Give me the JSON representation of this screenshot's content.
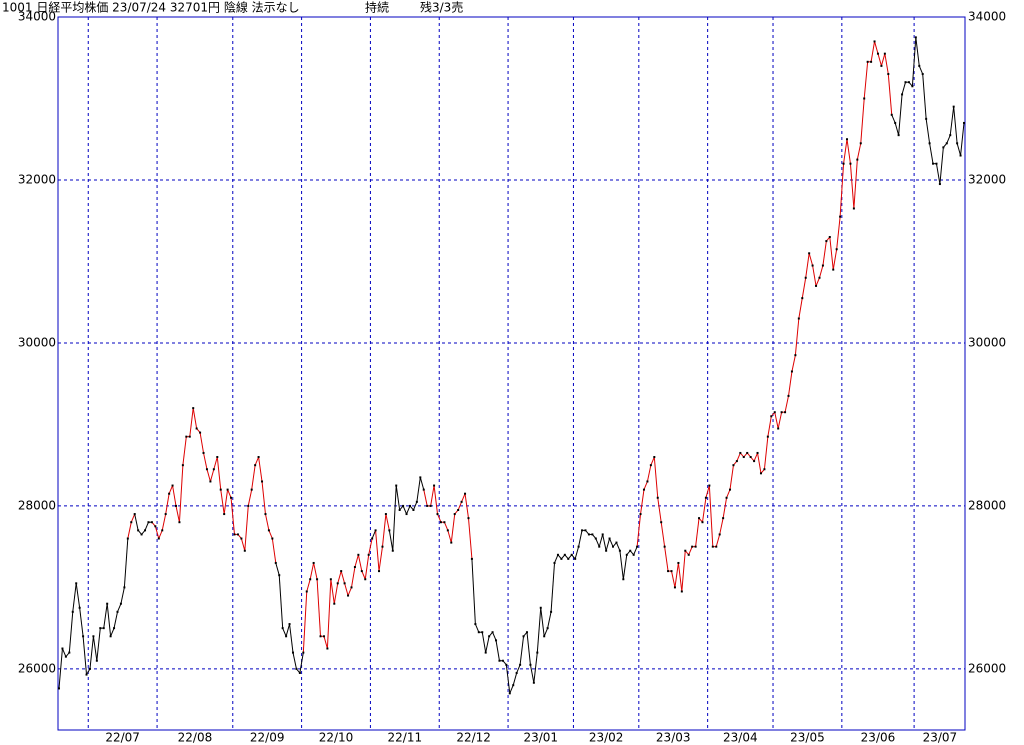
{
  "chart_data": {
    "type": "line",
    "header": [
      "1001 日経平均株価 23/07/24 32701円 陰線 法示なし",
      "持続",
      "残3/3売"
    ],
    "categories": [
      null,
      "22/07",
      "22/08",
      "22/09",
      "22/10",
      "22/11",
      "22/12",
      "23/01",
      "23/02",
      "23/03",
      "23/04",
      "23/05",
      "23/06",
      "23/07"
    ],
    "ylim": [
      25250,
      34000
    ],
    "yticks": [
      26000,
      28000,
      30000,
      32000,
      34000
    ],
    "grid": true,
    "grid_color": "#0000c0",
    "point_color": "#000000",
    "series": [
      {
        "values": [
          [
            25760,
            26250,
            26150,
            26200,
            26700,
            27050,
            26750,
            26400,
            25930
          ],
          [
            26000,
            26400,
            26100,
            26500,
            26500,
            26800,
            26400,
            26500,
            26700,
            26800,
            27000,
            27600,
            27800,
            27900,
            27700,
            27650,
            27700,
            27800,
            27800,
            27750
          ],
          [
            27600,
            27700,
            27900,
            28150,
            28250,
            28000,
            27800,
            28500,
            28850,
            28850,
            29200,
            28950,
            28900,
            28650,
            28450,
            28300,
            28450,
            28600,
            28200,
            27900,
            28200,
            28100
          ],
          [
            27650,
            27650,
            27600,
            27450,
            28000,
            28200,
            28500,
            28600,
            28300,
            27900,
            27700,
            27600,
            27300,
            27150,
            26500,
            26400,
            26550,
            26200,
            26000,
            25950
          ],
          [
            26200,
            26950,
            27100,
            27300,
            27100,
            26400,
            26400,
            26250,
            27100,
            26800,
            27050,
            27200,
            27050,
            26900,
            27000,
            27250,
            27400,
            27200,
            27100,
            27400
          ],
          [
            27600,
            27700,
            27200,
            27500,
            27900,
            27700,
            27450,
            28250,
            27950,
            28000,
            27900,
            28000,
            27950,
            28050,
            28350,
            28200,
            28000,
            28000,
            28250,
            27900
          ],
          [
            27800,
            27800,
            27700,
            27550,
            27900,
            27950,
            28050,
            28150,
            27850,
            27350,
            26550,
            26450,
            26450,
            26200,
            26400,
            26450,
            26350,
            26100,
            26100,
            26050
          ],
          [
            25700,
            25800,
            25950,
            26050,
            26400,
            26450,
            26050,
            25830,
            26200,
            26750,
            26400,
            26500,
            26700,
            27300,
            27400,
            27350,
            27400,
            27350,
            27400
          ],
          [
            27350,
            27500,
            27700,
            27700,
            27650,
            27650,
            27600,
            27500,
            27650,
            27450,
            27600,
            27500,
            27550,
            27450,
            27100,
            27400,
            27450,
            27400,
            27500
          ],
          [
            27900,
            28200,
            28300,
            28500,
            28600,
            28100,
            27800,
            27500,
            27200,
            27200,
            27000,
            27300,
            26950,
            27450,
            27400,
            27500,
            27500,
            27850,
            27800,
            28100
          ],
          [
            28250,
            27500,
            27500,
            27650,
            27850,
            28100,
            28200,
            28500,
            28550,
            28650,
            28600,
            28650,
            28600,
            28550,
            28650,
            28400,
            28450,
            28850,
            29100
          ],
          [
            29150,
            28950,
            29150,
            29150,
            29350,
            29650,
            29850,
            30300,
            30550,
            30800,
            31100,
            30950,
            30700,
            30800,
            30950,
            31250,
            31300,
            30900,
            31150,
            31550
          ],
          [
            32200,
            32500,
            32200,
            31650,
            32250,
            32450,
            33000,
            33450,
            33450,
            33700,
            33550,
            33400,
            33550,
            33300,
            32800,
            32700,
            32550,
            33050,
            33200,
            33200,
            33150
          ],
          [
            33750,
            33400,
            33300,
            32750,
            32450,
            32200,
            32200,
            31950,
            32400,
            32450,
            32550,
            32900,
            32450,
            32300,
            32700
          ]
        ],
        "segment_colors": [
          [
            "#000",
            "#000",
            "#000",
            "#000",
            "#000",
            "#000",
            "#000",
            "#000",
            "#000"
          ],
          [
            "#000",
            "#000",
            "#000",
            "#000",
            "#000",
            "#000",
            "#000",
            "#000",
            "#000",
            "#000",
            "#000",
            "#d00",
            "#d00",
            "#000",
            "#000",
            "#000",
            "#000",
            "#000",
            "#d00",
            "#d00"
          ],
          [
            "#d00",
            "#d00",
            "#d00",
            "#d00",
            "#d00",
            "#d00",
            "#d00",
            "#d00",
            "#d00",
            "#d00",
            "#d00",
            "#d00",
            "#d00",
            "#d00",
            "#d00",
            "#d00",
            "#d00",
            "#d00",
            "#d00",
            "#d00",
            "#d00",
            "#d00"
          ],
          [
            "#d00",
            "#d00",
            "#d00",
            "#d00",
            "#d00",
            "#d00",
            "#d00",
            "#d00",
            "#d00",
            "#d00",
            "#d00",
            "#d00",
            "#000",
            "#000",
            "#000",
            "#000",
            "#000",
            "#000",
            "#000",
            "#000"
          ],
          [
            "#d00",
            "#d00",
            "#d00",
            "#d00",
            "#d00",
            "#d00",
            "#d00",
            "#d00",
            "#d00",
            "#d00",
            "#d00",
            "#d00",
            "#d00",
            "#d00",
            "#d00",
            "#d00",
            "#d00",
            "#d00",
            "#d00",
            "#d00"
          ],
          [
            "#000",
            "#d00",
            "#d00",
            "#d00",
            "#d00",
            "#000",
            "#000",
            "#000",
            "#000",
            "#000",
            "#000",
            "#000",
            "#000",
            "#000",
            "#000",
            "#d00",
            "#d00",
            "#d00",
            "#d00",
            "#d00"
          ],
          [
            "#d00",
            "#d00",
            "#d00",
            "#d00",
            "#d00",
            "#d00",
            "#d00",
            "#d00",
            "#d00",
            "#000",
            "#000",
            "#000",
            "#000",
            "#000",
            "#000",
            "#000",
            "#000",
            "#000",
            "#000",
            "#000"
          ],
          [
            "#000",
            "#000",
            "#000",
            "#000",
            "#000",
            "#000",
            "#000",
            "#000",
            "#000",
            "#000",
            "#000",
            "#000",
            "#000",
            "#000",
            "#000",
            "#000",
            "#000",
            "#000",
            "#000"
          ],
          [
            "#000",
            "#000",
            "#000",
            "#000",
            "#000",
            "#000",
            "#000",
            "#000",
            "#000",
            "#000",
            "#000",
            "#000",
            "#000",
            "#000",
            "#000",
            "#000",
            "#000",
            "#000",
            "#d00"
          ],
          [
            "#d00",
            "#d00",
            "#d00",
            "#d00",
            "#d00",
            "#d00",
            "#d00",
            "#d00",
            "#d00",
            "#d00",
            "#d00",
            "#d00",
            "#d00",
            "#d00",
            "#d00",
            "#d00",
            "#d00",
            "#d00",
            "#d00",
            "#d00"
          ],
          [
            "#d00",
            "#d00",
            "#d00",
            "#d00",
            "#d00",
            "#d00",
            "#d00",
            "#d00",
            "#d00",
            "#d00",
            "#d00",
            "#d00",
            "#d00",
            "#d00",
            "#d00",
            "#d00",
            "#d00",
            "#d00",
            "#d00"
          ],
          [
            "#d00",
            "#d00",
            "#d00",
            "#d00",
            "#d00",
            "#d00",
            "#d00",
            "#d00",
            "#d00",
            "#d00",
            "#d00",
            "#d00",
            "#d00",
            "#d00",
            "#d00",
            "#d00",
            "#d00",
            "#d00",
            "#d00",
            "#d00"
          ],
          [
            "#d00",
            "#d00",
            "#d00",
            "#d00",
            "#d00",
            "#d00",
            "#d00",
            "#d00",
            "#d00",
            "#d00",
            "#d00",
            "#d00",
            "#d00",
            "#d00",
            "#000",
            "#000",
            "#000",
            "#000",
            "#000",
            "#000",
            "#000"
          ],
          [
            "#000",
            "#000",
            "#000",
            "#000",
            "#000",
            "#000",
            "#000",
            "#000",
            "#000",
            "#000",
            "#000",
            "#000",
            "#000",
            "#000",
            "#000"
          ]
        ]
      }
    ]
  }
}
